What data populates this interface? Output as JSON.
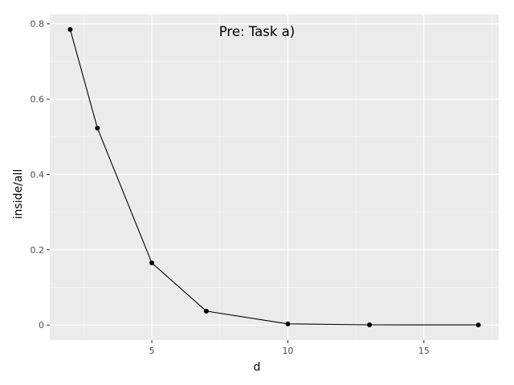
{
  "chart_data": {
    "type": "line",
    "annotation": "Pre: Task a)",
    "xlabel": "d",
    "ylabel": "inside/all",
    "x": [
      2,
      3,
      5,
      7,
      10,
      13,
      17
    ],
    "series": [
      {
        "values": [
          0.785,
          0.523,
          0.165,
          0.037,
          0.003,
          0.0005,
          0.0003
        ],
        "color": "#000000"
      }
    ],
    "xlim": [
      1.25,
      17.75
    ],
    "ylim": [
      -0.04,
      0.825
    ],
    "x_ticks": [
      5,
      10,
      15
    ],
    "x_tick_labels": [
      "5",
      "10",
      "15"
    ],
    "x_minor_ticks": [
      2.5,
      7.5,
      12.5,
      17.5
    ],
    "y_ticks": [
      0,
      0.2,
      0.4,
      0.6,
      0.8
    ],
    "y_tick_labels": [
      "0",
      "0.2",
      "0.4",
      "0.6",
      "0.8"
    ],
    "y_minor_ticks": [
      0.1,
      0.3,
      0.5,
      0.7
    ],
    "grid": true,
    "panel_color": "#ebebeb",
    "grid_color": "#ffffff"
  }
}
